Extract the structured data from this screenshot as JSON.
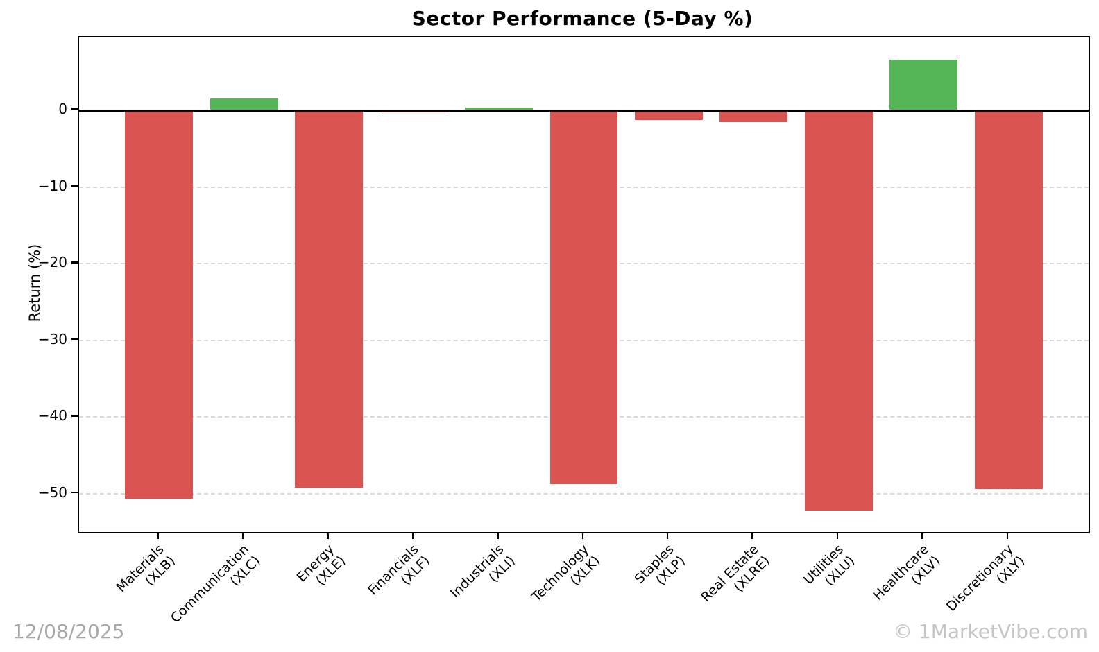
{
  "title": "Sector Performance (5-Day %)",
  "footer": {
    "date": "12/08/2025",
    "watermark": "© 1MarketVibe.com"
  },
  "chart_data": {
    "type": "bar",
    "title": "Sector Performance (5-Day %)",
    "xlabel": "",
    "ylabel": "Return (%)",
    "categories": [
      {
        "name": "Materials",
        "ticker": "(XLB)"
      },
      {
        "name": "Communication",
        "ticker": "(XLC)"
      },
      {
        "name": "Energy",
        "ticker": "(XLE)"
      },
      {
        "name": "Financials",
        "ticker": "(XLF)"
      },
      {
        "name": "Industrials",
        "ticker": "(XLI)"
      },
      {
        "name": "Technology",
        "ticker": "(XLK)"
      },
      {
        "name": "Staples",
        "ticker": "(XLP)"
      },
      {
        "name": "Real Estate",
        "ticker": "(XLRE)"
      },
      {
        "name": "Utilities",
        "ticker": "(XLU)"
      },
      {
        "name": "Healthcare",
        "ticker": "(XLV)"
      },
      {
        "name": "Discretionary",
        "ticker": "(XLY)"
      }
    ],
    "values": [
      -50.7,
      1.5,
      -49.2,
      -0.3,
      0.4,
      -48.8,
      -1.3,
      -1.5,
      -52.2,
      6.6,
      -49.4
    ],
    "yticks": [
      0,
      -10,
      -20,
      -30,
      -40,
      -50
    ],
    "ytick_labels": [
      "0",
      "−10",
      "−20",
      "−30",
      "−40",
      "−50"
    ],
    "ylim": [
      -55.0,
      9.5
    ],
    "xlim": [
      -0.94,
      10.94
    ],
    "bar_width_units": 0.8,
    "grid": "horizontal-dashed",
    "legend": "none",
    "colors": {
      "positive": "#55b455",
      "negative": "#d95351",
      "grid": "#d9d9d9",
      "zero_line": "#000000"
    }
  }
}
